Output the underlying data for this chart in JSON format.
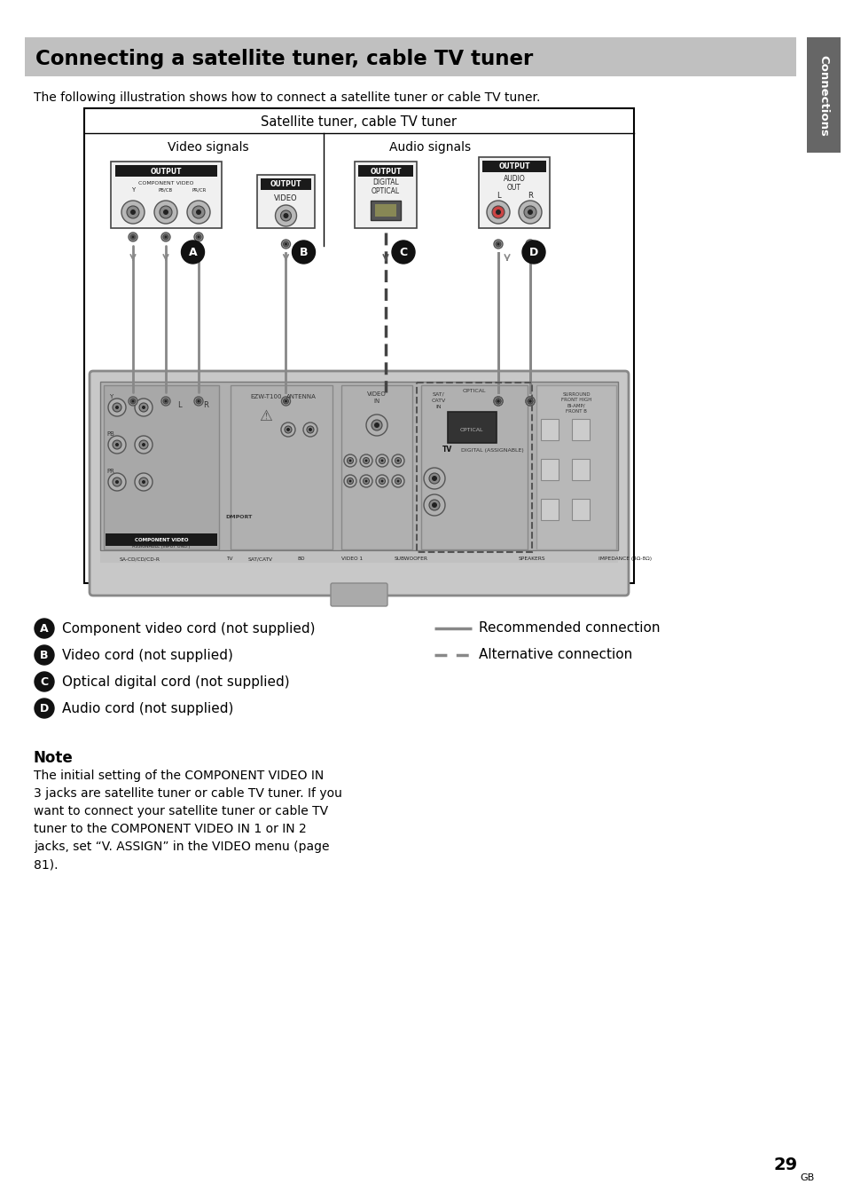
{
  "page_bg": "#ffffff",
  "title_text": "Connecting a satellite tuner, cable TV tuner",
  "title_bg": "#c0c0c0",
  "title_color": "#000000",
  "sidebar_bg": "#666666",
  "sidebar_text": "Connections",
  "intro_text": "The following illustration shows how to connect a satellite tuner or cable TV tuner.",
  "diagram_title": "Satellite tuner, cable TV tuner",
  "diagram_video_label": "Video signals",
  "diagram_audio_label": "Audio signals",
  "legend_items": [
    {
      "letter": "A",
      "text": "Component video cord (not supplied)"
    },
    {
      "letter": "B",
      "text": "Video cord (not supplied)"
    },
    {
      "letter": "C",
      "text": "Optical digital cord (not supplied)"
    },
    {
      "letter": "D",
      "text": "Audio cord (not supplied)"
    }
  ],
  "legend_right": [
    {
      "line_style": "solid",
      "text": "Recommended connection"
    },
    {
      "line_style": "dashed",
      "text": "Alternative connection"
    }
  ],
  "note_title": "Note",
  "note_body": "The initial setting of the COMPONENT VIDEO IN\n3 jacks are satellite tuner or cable TV tuner. If you\nwant to connect your satellite tuner or cable TV\ntuner to the COMPONENT VIDEO IN 1 or IN 2\njacks, set “V. ASSIGN” in the VIDEO menu (page\n81).",
  "page_number": "29",
  "page_suffix": "GB"
}
